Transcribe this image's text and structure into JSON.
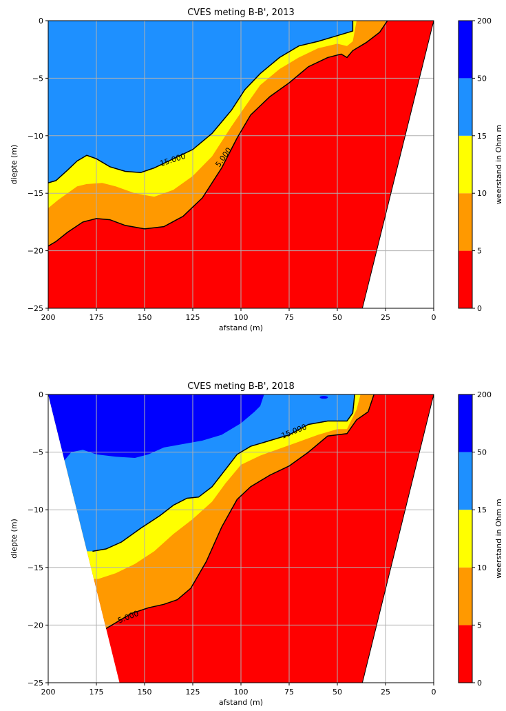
{
  "chart_data": [
    {
      "type": "heatmap",
      "title": "CVES meting B-B', 2013",
      "xlabel": "afstand (m)",
      "ylabel": "diepte (m)",
      "xlim": [
        200,
        0
      ],
      "ylim": [
        -25,
        0
      ],
      "x_ticks": [
        200,
        175,
        150,
        125,
        100,
        75,
        50,
        25,
        0
      ],
      "y_ticks": [
        0,
        -5,
        -10,
        -15,
        -20,
        -25
      ],
      "x_tick_labels": [
        "200",
        "175",
        "150",
        "125",
        "100",
        "75",
        "50",
        "25",
        "0"
      ],
      "y_tick_labels": [
        "0",
        "−5",
        "−10",
        "−15",
        "−20",
        "−25"
      ],
      "grid": true,
      "colorbar": {
        "label": "weerstand in Ohm m",
        "levels": [
          0,
          5,
          10,
          15,
          50,
          200
        ],
        "level_labels": [
          "0",
          "5",
          "10",
          "15",
          "50",
          "200"
        ],
        "colors": [
          "#ff0000",
          "#ff9900",
          "#ffff00",
          "#1e90ff",
          "#0000ff"
        ]
      },
      "contour_labels": [
        {
          "text": "15.000",
          "x": 135,
          "y": -12.3
        },
        {
          "text": "5.000",
          "x": 108,
          "y": -12.0
        }
      ],
      "domain": {
        "left_edge": [
          [
            200,
            0
          ],
          [
            200,
            -25
          ]
        ],
        "right_edge": [
          [
            0,
            0
          ],
          [
            37,
            -25
          ]
        ]
      },
      "boundaries": {
        "b15": [
          [
            200,
            -14.1
          ],
          [
            196,
            -13.9
          ],
          [
            190,
            -13.0
          ],
          [
            185,
            -12.2
          ],
          [
            180,
            -11.7
          ],
          [
            175,
            -12.0
          ],
          [
            168,
            -12.7
          ],
          [
            160,
            -13.1
          ],
          [
            152,
            -13.2
          ],
          [
            145,
            -12.8
          ],
          [
            135,
            -12.0
          ],
          [
            125,
            -11.2
          ],
          [
            115,
            -9.8
          ],
          [
            105,
            -7.8
          ],
          [
            98,
            -6.0
          ],
          [
            90,
            -4.6
          ],
          [
            80,
            -3.2
          ],
          [
            70,
            -2.2
          ],
          [
            60,
            -1.8
          ],
          [
            50,
            -1.3
          ],
          [
            44,
            -1.0
          ],
          [
            42,
            -0.9
          ],
          [
            42,
            0
          ]
        ],
        "b10": [
          [
            200,
            -16.3
          ],
          [
            195,
            -15.6
          ],
          [
            190,
            -15.0
          ],
          [
            185,
            -14.4
          ],
          [
            180,
            -14.2
          ],
          [
            172,
            -14.1
          ],
          [
            165,
            -14.4
          ],
          [
            155,
            -15.0
          ],
          [
            145,
            -15.3
          ],
          [
            135,
            -14.7
          ],
          [
            125,
            -13.5
          ],
          [
            115,
            -11.8
          ],
          [
            105,
            -9.2
          ],
          [
            98,
            -7.5
          ],
          [
            90,
            -5.6
          ],
          [
            80,
            -4.2
          ],
          [
            70,
            -3.2
          ],
          [
            60,
            -2.4
          ],
          [
            50,
            -2.0
          ],
          [
            45,
            -2.2
          ],
          [
            42,
            -1.8
          ],
          [
            40,
            0
          ],
          [
            38,
            0
          ]
        ],
        "b5": [
          [
            200,
            -19.6
          ],
          [
            196,
            -19.2
          ],
          [
            190,
            -18.4
          ],
          [
            182,
            -17.5
          ],
          [
            175,
            -17.2
          ],
          [
            168,
            -17.3
          ],
          [
            160,
            -17.8
          ],
          [
            150,
            -18.1
          ],
          [
            140,
            -17.9
          ],
          [
            130,
            -17.0
          ],
          [
            120,
            -15.4
          ],
          [
            110,
            -12.8
          ],
          [
            102,
            -10.2
          ],
          [
            95,
            -8.2
          ],
          [
            85,
            -6.6
          ],
          [
            75,
            -5.4
          ],
          [
            65,
            -4.0
          ],
          [
            55,
            -3.2
          ],
          [
            48,
            -2.9
          ],
          [
            45,
            -3.2
          ],
          [
            42,
            -2.6
          ],
          [
            35,
            -1.9
          ],
          [
            28,
            -1.0
          ],
          [
            24,
            0
          ]
        ]
      }
    },
    {
      "type": "heatmap",
      "title": "CVES meting B-B', 2018",
      "xlabel": "afstand (m)",
      "ylabel": "diepte (m)",
      "xlim": [
        200,
        0
      ],
      "ylim": [
        -25,
        0
      ],
      "x_ticks": [
        200,
        175,
        150,
        125,
        100,
        75,
        50,
        25,
        0
      ],
      "y_ticks": [
        0,
        -5,
        -10,
        -15,
        -20,
        -25
      ],
      "x_tick_labels": [
        "200",
        "175",
        "150",
        "125",
        "100",
        "75",
        "50",
        "25",
        "0"
      ],
      "y_tick_labels": [
        "0",
        "−5",
        "−10",
        "−15",
        "−20",
        "−25"
      ],
      "grid": true,
      "colorbar": {
        "label": "weerstand in Ohm m",
        "levels": [
          0,
          5,
          10,
          15,
          50,
          200
        ],
        "level_labels": [
          "0",
          "5",
          "10",
          "15",
          "50",
          "200"
        ],
        "colors": [
          "#ff0000",
          "#ff9900",
          "#ffff00",
          "#1e90ff",
          "#0000ff"
        ]
      },
      "contour_labels": [
        {
          "text": "15.000",
          "x": 72,
          "y": -3.4
        },
        {
          "text": "5.000",
          "x": 158,
          "y": -19.5
        }
      ],
      "domain": {
        "left_edge": [
          [
            200,
            0
          ],
          [
            163,
            -25
          ]
        ],
        "right_edge": [
          [
            0,
            0
          ],
          [
            37,
            -25
          ]
        ]
      },
      "boundaries": {
        "b50": [
          [
            200,
            0
          ],
          [
            196,
            -3.0
          ],
          [
            192,
            -5.8
          ],
          [
            188,
            -5.0
          ],
          [
            182,
            -4.8
          ],
          [
            175,
            -5.2
          ],
          [
            165,
            -5.4
          ],
          [
            155,
            -5.5
          ],
          [
            148,
            -5.2
          ],
          [
            140,
            -4.6
          ],
          [
            130,
            -4.3
          ],
          [
            120,
            -4.0
          ],
          [
            110,
            -3.5
          ],
          [
            100,
            -2.5
          ],
          [
            93,
            -1.5
          ],
          [
            90,
            -1.0
          ],
          [
            88,
            0
          ]
        ],
        "b15": [
          [
            177,
            -13.6
          ],
          [
            170,
            -13.4
          ],
          [
            162,
            -12.8
          ],
          [
            152,
            -11.6
          ],
          [
            142,
            -10.5
          ],
          [
            135,
            -9.6
          ],
          [
            128,
            -9.0
          ],
          [
            122,
            -8.9
          ],
          [
            115,
            -8.0
          ],
          [
            108,
            -6.5
          ],
          [
            102,
            -5.2
          ],
          [
            95,
            -4.5
          ],
          [
            85,
            -4.0
          ],
          [
            75,
            -3.5
          ],
          [
            65,
            -2.6
          ],
          [
            55,
            -2.3
          ],
          [
            45,
            -2.3
          ],
          [
            42,
            -1.6
          ],
          [
            41,
            0
          ]
        ],
        "b10": [
          [
            174,
            -16.0
          ],
          [
            165,
            -15.5
          ],
          [
            155,
            -14.7
          ],
          [
            145,
            -13.6
          ],
          [
            135,
            -12.1
          ],
          [
            125,
            -10.8
          ],
          [
            115,
            -9.3
          ],
          [
            108,
            -7.7
          ],
          [
            100,
            -6.1
          ],
          [
            90,
            -5.3
          ],
          [
            80,
            -4.7
          ],
          [
            70,
            -4.1
          ],
          [
            60,
            -3.5
          ],
          [
            50,
            -3.0
          ],
          [
            45,
            -3.0
          ],
          [
            40,
            -1.3
          ],
          [
            38,
            0
          ]
        ],
        "b5": [
          [
            171,
            -20.4
          ],
          [
            165,
            -19.8
          ],
          [
            157,
            -19.0
          ],
          [
            148,
            -18.5
          ],
          [
            140,
            -18.2
          ],
          [
            133,
            -17.8
          ],
          [
            126,
            -16.8
          ],
          [
            118,
            -14.5
          ],
          [
            110,
            -11.5
          ],
          [
            102,
            -9.1
          ],
          [
            95,
            -8.0
          ],
          [
            85,
            -7.0
          ],
          [
            75,
            -6.2
          ],
          [
            65,
            -5.0
          ],
          [
            55,
            -3.6
          ],
          [
            45,
            -3.4
          ],
          [
            40,
            -2.2
          ],
          [
            34,
            -1.5
          ],
          [
            31,
            0
          ]
        ]
      }
    }
  ]
}
